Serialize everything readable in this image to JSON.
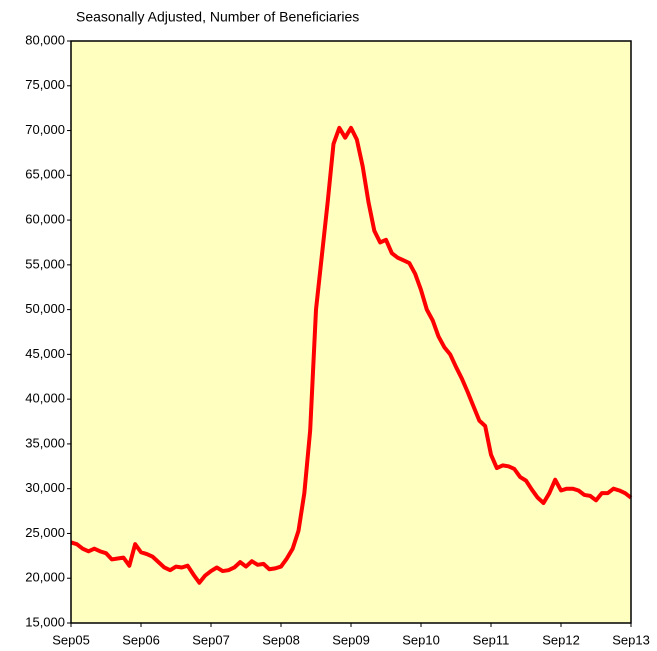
{
  "chart_data": {
    "type": "line",
    "title": "Seasonally Adjusted, Number of Beneficiaries",
    "categories": [
      "Sep05",
      null,
      null,
      null,
      null,
      null,
      null,
      null,
      null,
      null,
      null,
      null,
      "Sep06",
      null,
      null,
      null,
      null,
      null,
      null,
      null,
      null,
      null,
      null,
      null,
      "Sep07",
      null,
      null,
      null,
      null,
      null,
      null,
      null,
      null,
      null,
      null,
      null,
      "Sep08",
      null,
      null,
      null,
      null,
      null,
      null,
      null,
      null,
      null,
      null,
      null,
      "Sep09",
      null,
      null,
      null,
      null,
      null,
      null,
      null,
      null,
      null,
      null,
      null,
      "Sep10",
      null,
      null,
      null,
      null,
      null,
      null,
      null,
      null,
      null,
      null,
      null,
      "Sep11",
      null,
      null,
      null,
      null,
      null,
      null,
      null,
      null,
      null,
      null,
      null,
      "Sep12",
      null,
      null,
      null,
      null,
      null,
      null,
      null,
      null,
      null,
      null,
      null,
      "Sep13"
    ],
    "series": [
      {
        "name": null,
        "color": "#ff0000",
        "values": [
          24000,
          23800,
          23300,
          23000,
          23300,
          23000,
          22800,
          22100,
          22200,
          22300,
          21400,
          23800,
          22900,
          22700,
          22400,
          21800,
          21200,
          20900,
          21300,
          21200,
          21400,
          20400,
          19500,
          20300,
          20800,
          21200,
          20800,
          20900,
          21200,
          21800,
          21300,
          21900,
          21500,
          21600,
          21000,
          21100,
          21300,
          22200,
          23300,
          25300,
          29500,
          36500,
          50000,
          56000,
          62000,
          68500,
          70300,
          69200,
          70300,
          69000,
          66000,
          62000,
          58800,
          57500,
          57800,
          56300,
          55800,
          55500,
          55200,
          54000,
          52200,
          50000,
          48800,
          47000,
          45800,
          45000,
          43600,
          42300,
          40800,
          39200,
          37600,
          37000,
          33800,
          32300,
          32600,
          32500,
          32200,
          31300,
          30900,
          29900,
          29000,
          28400,
          29500,
          31000,
          29800,
          30000,
          30000,
          29800,
          29300,
          29200,
          28700,
          29500,
          29500,
          30000,
          29800,
          29500,
          29000
        ]
      }
    ],
    "ylim": [
      15000,
      80000
    ],
    "yticks": [
      {
        "value": 15000,
        "label": "15,000"
      },
      {
        "value": 20000,
        "label": "20,000"
      },
      {
        "value": 25000,
        "label": "25,000"
      },
      {
        "value": 30000,
        "label": "30,000"
      },
      {
        "value": 35000,
        "label": "35,000"
      },
      {
        "value": 40000,
        "label": "40,000"
      },
      {
        "value": 45000,
        "label": "45,000"
      },
      {
        "value": 50000,
        "label": "50,000"
      },
      {
        "value": 55000,
        "label": "55,000"
      },
      {
        "value": 60000,
        "label": "60,000"
      },
      {
        "value": 65000,
        "label": "65,000"
      },
      {
        "value": 70000,
        "label": "70,000"
      },
      {
        "value": 75000,
        "label": "75,000"
      },
      {
        "value": 80000,
        "label": "80,000"
      }
    ],
    "grid": false,
    "plot_background": "#ffffc0"
  }
}
